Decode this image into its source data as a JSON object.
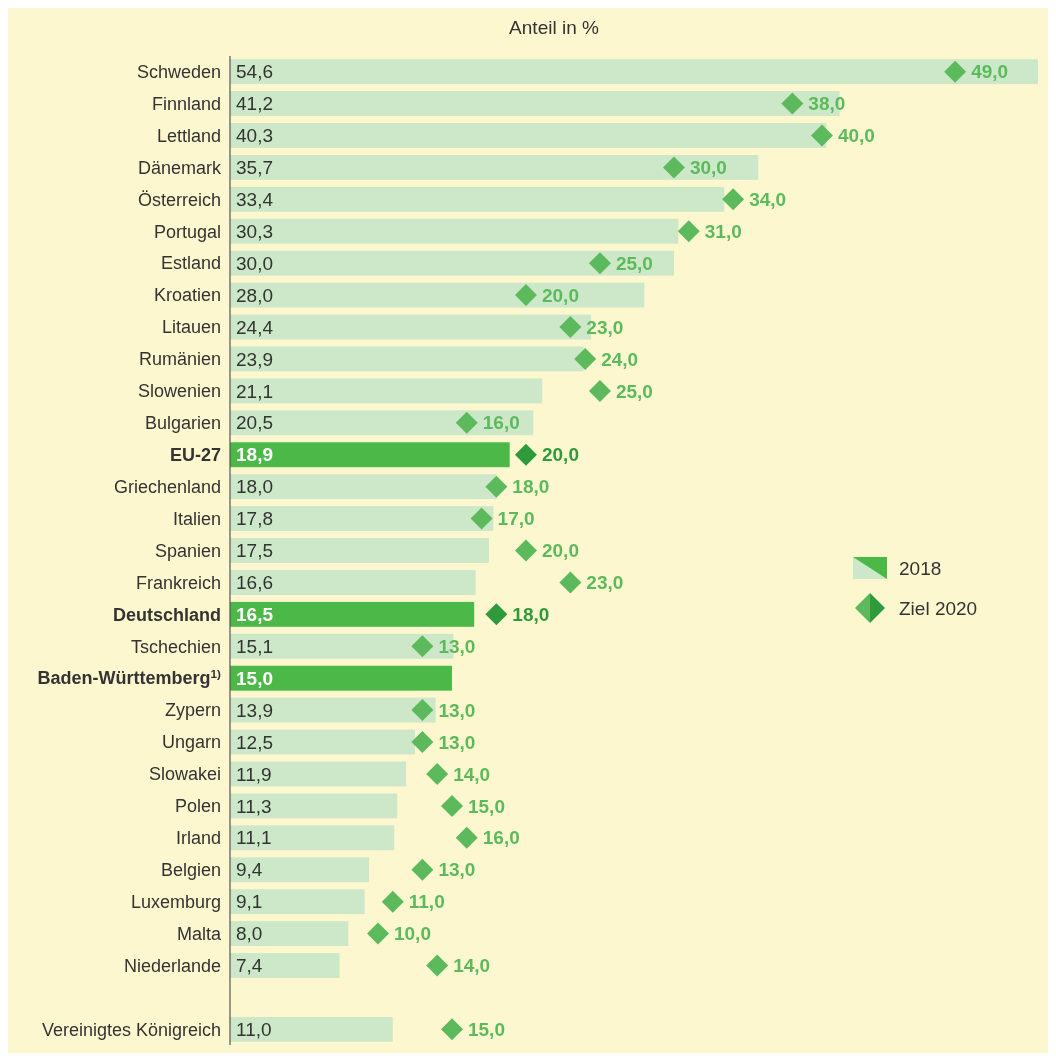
{
  "chart_data": {
    "type": "bar",
    "orientation": "horizontal",
    "title": "Anteil in %",
    "legend": "right",
    "data_labels": true,
    "categories": [
      "Schweden",
      "Finnland",
      "Lettland",
      "Dänemark",
      "Österreich",
      "Portugal",
      "Estland",
      "Kroatien",
      "Litauen",
      "Rumänien",
      "Slowenien",
      "Bulgarien",
      "EU-27",
      "Griechenland",
      "Italien",
      "Spanien",
      "Frankreich",
      "Deutschland",
      "Tschechien",
      "Baden-Württemberg$^{1)}$",
      "Zypern",
      "Ungarn",
      "Slowakei",
      "Polen",
      "Irland",
      "Belgien",
      "Luxemburg",
      "Malta",
      "Niederlande",
      null,
      "Vereinigtes Königreich"
    ],
    "series": [
      {
        "name": "2018",
        "color": "#cde8c8",
        "colors": [
          "#cde8c8",
          "#cde8c8",
          "#cde8c8",
          "#cde8c8",
          "#cde8c8",
          "#cde8c8",
          "#cde8c8",
          "#cde8c8",
          "#cde8c8",
          "#cde8c8",
          "#cde8c8",
          "#cde8c8",
          "#4cb848",
          "#cde8c8",
          "#cde8c8",
          "#cde8c8",
          "#cde8c8",
          "#4cb848",
          "#cde8c8",
          "#4cb848",
          "#cde8c8",
          "#cde8c8",
          "#cde8c8",
          "#cde8c8",
          "#cde8c8",
          "#cde8c8",
          "#cde8c8",
          "#cde8c8",
          "#cde8c8",
          null,
          "#cde8c8"
        ],
        "values": [
          54.6,
          41.2,
          40.3,
          35.7,
          33.4,
          30.3,
          30.0,
          28.0,
          24.4,
          23.9,
          21.1,
          20.5,
          18.9,
          18.0,
          17.8,
          17.5,
          16.6,
          16.5,
          15.1,
          15.0,
          13.9,
          12.5,
          11.9,
          11.3,
          11.1,
          9.4,
          9.1,
          8.0,
          7.4,
          null,
          11.0
        ],
        "value_labels": [
          "54,6",
          "41,2",
          "40,3",
          "35,7",
          "33,4",
          "30,3",
          "30,0",
          "28,0",
          "24,4",
          "23,9",
          "21,1",
          "20,5",
          "18,9",
          "18,0",
          "17,8",
          "17,5",
          "16,6",
          "16,5",
          "15,1",
          "15,0",
          "13,9",
          "12,5",
          "11,9",
          "11,3",
          "11,1",
          "9,4",
          "9,1",
          "8,0",
          "7,4",
          null,
          "11,0"
        ]
      },
      {
        "name": "Ziel 2020",
        "type": "scatter",
        "marker": "diamond",
        "color": "#5cba5c",
        "colors": [
          "#5cba5c",
          "#5cba5c",
          "#5cba5c",
          "#5cba5c",
          "#5cba5c",
          "#5cba5c",
          "#5cba5c",
          "#5cba5c",
          "#5cba5c",
          "#5cba5c",
          "#5cba5c",
          "#5cba5c",
          "#2e9a3a",
          "#5cba5c",
          "#5cba5c",
          "#5cba5c",
          "#5cba5c",
          "#2e9a3a",
          "#5cba5c",
          null,
          "#5cba5c",
          "#5cba5c",
          "#5cba5c",
          "#5cba5c",
          "#5cba5c",
          "#5cba5c",
          "#5cba5c",
          "#5cba5c",
          "#5cba5c",
          null,
          "#5cba5c"
        ],
        "values": [
          49.0,
          38.0,
          40.0,
          30.0,
          34.0,
          31.0,
          25.0,
          20.0,
          23.0,
          24.0,
          25.0,
          16.0,
          20.0,
          18.0,
          17.0,
          20.0,
          23.0,
          18.0,
          13.0,
          null,
          13.0,
          13.0,
          14.0,
          15.0,
          16.0,
          13.0,
          11.0,
          10.0,
          14.0,
          null,
          15.0
        ],
        "value_labels": [
          "49,0",
          "38,0",
          "40,0",
          "30,0",
          "34,0",
          "31,0",
          "25,0",
          "20,0",
          "23,0",
          "24,0",
          "25,0",
          "16,0",
          "20,0",
          "18,0",
          "17,0",
          "20,0",
          "23,0",
          "18,0",
          "13,0",
          null,
          "13,0",
          "13,0",
          "14,0",
          "15,0",
          "16,0",
          "13,0",
          "11,0",
          "10,0",
          "14,0",
          null,
          "15,0"
        ]
      }
    ]
  }
}
